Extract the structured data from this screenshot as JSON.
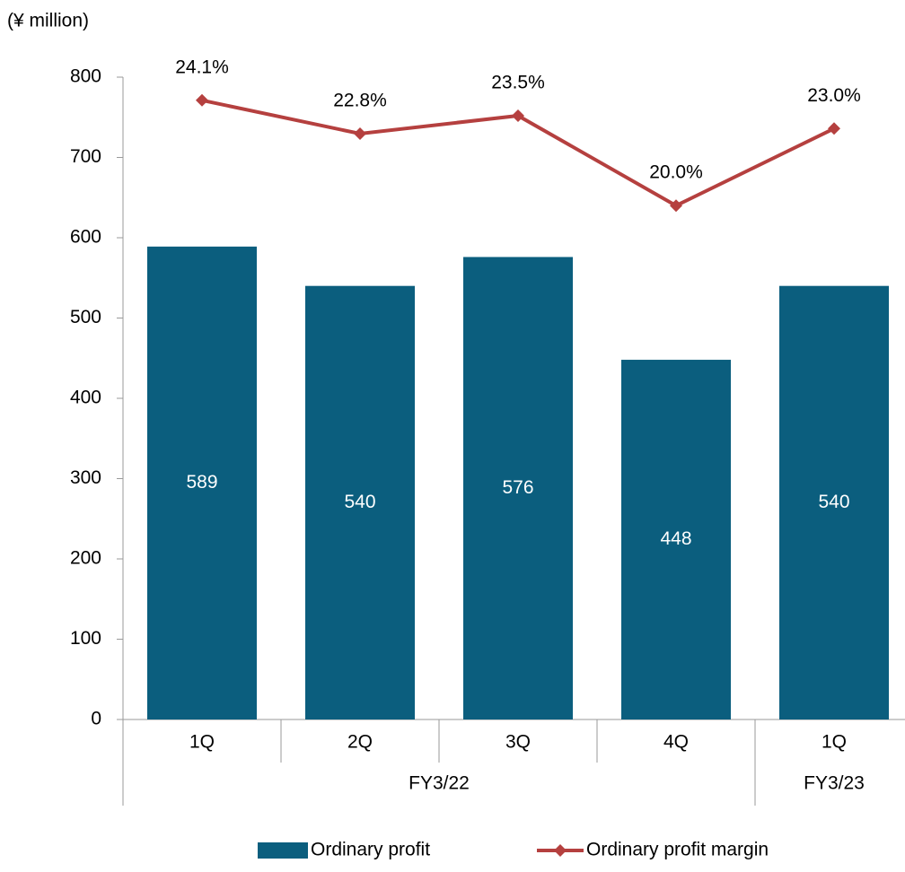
{
  "chart_data": {
    "type": "bar_line",
    "y_axis_label": "(¥ million)",
    "categories": [
      "1Q",
      "2Q",
      "3Q",
      "4Q",
      "1Q"
    ],
    "groups": [
      {
        "name": "FY3/22",
        "size": 4
      },
      {
        "name": "FY3/23",
        "size": 1
      }
    ],
    "ylim": [
      0,
      800
    ],
    "yticks": [
      0,
      100,
      200,
      300,
      400,
      500,
      600,
      700,
      800
    ],
    "y2lim": [
      0,
      25
    ],
    "series": [
      {
        "name": "Ordinary profit",
        "type": "bar",
        "color": "#0b5e7e",
        "values": [
          589,
          540,
          576,
          448,
          540
        ]
      },
      {
        "name": "Ordinary profit margin",
        "type": "line",
        "axis": "y2",
        "color": "#b5403f",
        "values": [
          24.1,
          22.8,
          23.5,
          20.0,
          23.0
        ],
        "value_labels": [
          "24.1%",
          "22.8%",
          "23.5%",
          "20.0%",
          "23.0%"
        ]
      }
    ]
  }
}
